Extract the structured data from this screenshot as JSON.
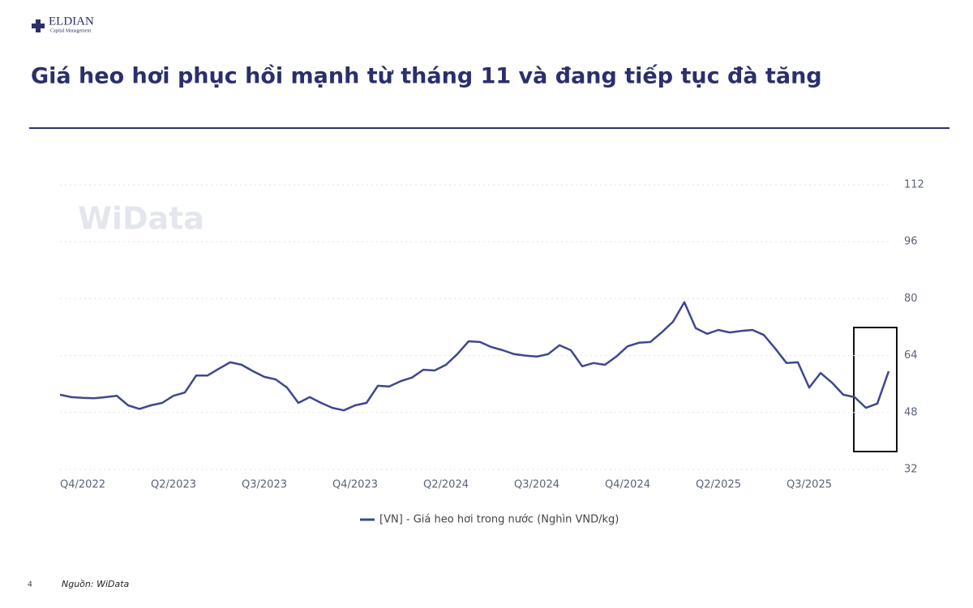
{
  "logo": {
    "name": "ELDIAN",
    "tagline": "Capital Management"
  },
  "header": {
    "title": "Giá heo hơi phục hồi mạnh từ tháng 11 và đang tiếp tục đà tăng"
  },
  "footer": {
    "page": "4",
    "source": "Nguồn: WiData"
  },
  "chart_data": {
    "type": "line",
    "watermark": "WiData",
    "categories": [
      null,
      null,
      "Q4/2022",
      null,
      null,
      null,
      null,
      null,
      null,
      null,
      "Q2/2023",
      null,
      null,
      null,
      null,
      null,
      null,
      null,
      "Q3/2023",
      null,
      null,
      null,
      null,
      null,
      null,
      null,
      "Q4/2023",
      null,
      null,
      null,
      null,
      null,
      null,
      null,
      "Q2/2024",
      null,
      null,
      null,
      null,
      null,
      null,
      null,
      "Q3/2024",
      null,
      null,
      null,
      null,
      null,
      null,
      null,
      "Q4/2024",
      null,
      null,
      null,
      null,
      null,
      null,
      null,
      "Q2/2025",
      null,
      null,
      null,
      null,
      null,
      null,
      null,
      "Q3/2025",
      null,
      null,
      null,
      null,
      null,
      null,
      null
    ],
    "series": [
      {
        "name": "[VN] - Giá heo hơi trong nước (Nghìn VND/kg)",
        "color": "#3f4790",
        "values": [
          53.0,
          52.3,
          52.1,
          52.0,
          52.3,
          52.7,
          50.0,
          49.0,
          50.0,
          50.7,
          52.7,
          53.6,
          58.4,
          58.4,
          60.3,
          62.1,
          61.4,
          59.6,
          58.0,
          57.3,
          55.0,
          50.7,
          52.3,
          50.7,
          49.3,
          48.6,
          50.0,
          50.7,
          55.5,
          55.3,
          56.8,
          57.8,
          60.0,
          59.8,
          61.4,
          64.4,
          68.0,
          67.8,
          66.4,
          65.5,
          64.4,
          64.0,
          63.7,
          64.4,
          66.9,
          65.5,
          61.0,
          61.9,
          61.4,
          63.7,
          66.6,
          67.6,
          67.8,
          70.5,
          73.5,
          79.0,
          71.7,
          70.1,
          71.2,
          70.5,
          70.9,
          71.2,
          69.8,
          66.0,
          61.9,
          62.1,
          55.0,
          59.1,
          56.4,
          53.0,
          52.3,
          49.3,
          50.5,
          59.6
        ]
      }
    ],
    "ylim": [
      32,
      112
    ],
    "yticks": [
      32,
      48,
      64,
      80,
      96,
      112
    ],
    "grid": true,
    "legend": "bottom"
  }
}
